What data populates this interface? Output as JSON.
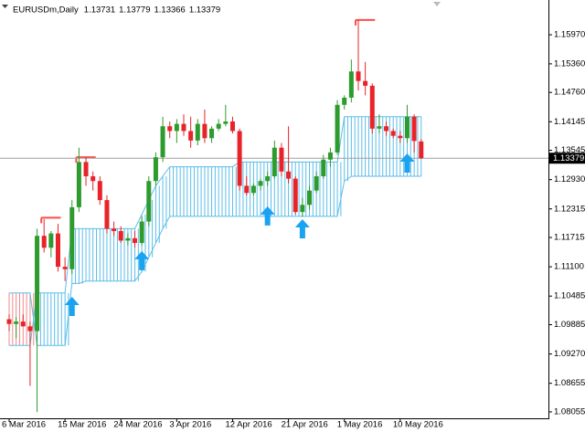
{
  "chart_data": {
    "type": "candlestick",
    "symbol": "EURUSDm,Daily",
    "categories": [
      "6 Mar 2016",
      null,
      null,
      null,
      null,
      null,
      null,
      null,
      "15 Mar 2016",
      null,
      null,
      null,
      null,
      null,
      null,
      null,
      "24 Mar 2016",
      null,
      null,
      null,
      null,
      null,
      null,
      null,
      "3 Apr 2016",
      null,
      null,
      null,
      null,
      null,
      null,
      null,
      "12 Apr 2016",
      null,
      null,
      null,
      null,
      null,
      null,
      null,
      "21 Apr 2016",
      null,
      null,
      null,
      null,
      null,
      null,
      null,
      "1 May 2016",
      null,
      null,
      null,
      null,
      null,
      null,
      null,
      "10 May 2016",
      null,
      null,
      null
    ],
    "open": [
      1.1,
      1.099,
      1.0995,
      1.0985,
      1.0975,
      1.1175,
      1.115,
      1.118,
      1.111,
      1.1105,
      1.1235,
      1.133,
      1.13,
      1.129,
      1.125,
      1.119,
      1.1185,
      1.1165,
      1.117,
      1.116,
      1.1205,
      1.129,
      1.134,
      1.1405,
      1.1395,
      1.141,
      1.1395,
      1.1375,
      1.141,
      1.138,
      1.14,
      1.141,
      1.1415,
      1.1395,
      1.128,
      1.1265,
      1.128,
      1.129,
      1.13,
      1.136,
      1.131,
      1.1295,
      1.1225,
      1.124,
      1.127,
      1.13,
      1.1335,
      1.135,
      1.145,
      1.1465,
      1.152,
      1.15,
      1.149,
      1.14,
      1.1405,
      1.1395,
      1.1385,
      1.138,
      1.1425,
      1.13731
    ],
    "high": [
      1.101,
      1.1005,
      1.101,
      1.0995,
      1.119,
      1.121,
      1.1185,
      1.12,
      1.113,
      1.125,
      1.136,
      1.134,
      1.131,
      1.13,
      1.126,
      1.1205,
      1.1195,
      1.118,
      1.1185,
      1.1215,
      1.13,
      1.135,
      1.1425,
      1.1415,
      1.142,
      1.143,
      1.1425,
      1.142,
      1.144,
      1.1405,
      1.142,
      1.145,
      1.1425,
      1.14,
      1.13,
      1.1285,
      1.1295,
      1.131,
      1.1375,
      1.137,
      1.1405,
      1.13,
      1.1255,
      1.128,
      1.131,
      1.1345,
      1.136,
      1.146,
      1.147,
      1.1545,
      1.1628,
      1.154,
      1.1495,
      1.143,
      1.1415,
      1.14,
      1.1395,
      1.145,
      1.143,
      1.13779
    ],
    "low": [
      1.0975,
      1.096,
      1.0985,
      1.086,
      1.0805,
      1.114,
      1.113,
      1.11,
      1.108,
      1.1095,
      1.1225,
      1.128,
      1.127,
      1.124,
      1.118,
      1.1175,
      1.116,
      1.1155,
      1.115,
      1.1155,
      1.1195,
      1.128,
      1.133,
      1.138,
      1.137,
      1.1385,
      1.136,
      1.1365,
      1.137,
      1.137,
      1.1395,
      1.1405,
      1.139,
      1.127,
      1.126,
      1.126,
      1.127,
      1.128,
      1.1295,
      1.13,
      1.1285,
      1.122,
      1.1215,
      1.123,
      1.1265,
      1.1295,
      1.132,
      1.1345,
      1.144,
      1.1455,
      1.148,
      1.147,
      1.139,
      1.139,
      1.1385,
      1.138,
      1.137,
      1.137,
      1.135,
      1.13366
    ],
    "close": [
      1.099,
      1.0995,
      1.0985,
      1.0975,
      1.1175,
      1.115,
      1.118,
      1.111,
      1.1105,
      1.1235,
      1.133,
      1.13,
      1.129,
      1.125,
      1.119,
      1.1185,
      1.1165,
      1.117,
      1.116,
      1.1205,
      1.129,
      1.134,
      1.1405,
      1.1395,
      1.141,
      1.1395,
      1.1375,
      1.141,
      1.138,
      1.14,
      1.141,
      1.1415,
      1.1395,
      1.128,
      1.1265,
      1.128,
      1.129,
      1.13,
      1.136,
      1.131,
      1.1295,
      1.1225,
      1.124,
      1.127,
      1.13,
      1.1335,
      1.135,
      1.145,
      1.1465,
      1.152,
      1.15,
      1.149,
      1.14,
      1.1405,
      1.1395,
      1.1385,
      1.138,
      1.1425,
      1.1374,
      1.13379
    ],
    "bull_color": "#2e9b2e",
    "bear_color": "#e8232a",
    "cloud": {
      "span_a": [
        1.0945,
        1.0945,
        1.0945,
        1.0945,
        1.1055,
        1.1055,
        1.1055,
        1.1055,
        1.1055,
        1.119,
        1.119,
        1.119,
        1.119,
        1.119,
        1.119,
        1.119,
        1.119,
        1.119,
        1.119,
        1.122,
        1.125,
        1.128,
        1.13,
        1.132,
        1.132,
        1.132,
        1.132,
        1.132,
        1.132,
        1.132,
        1.132,
        1.132,
        1.132,
        1.133,
        1.133,
        1.133,
        1.133,
        1.133,
        1.133,
        1.133,
        1.133,
        1.133,
        1.133,
        1.133,
        1.133,
        1.133,
        1.133,
        1.133,
        1.1425,
        1.1425,
        1.1425,
        1.1425,
        1.1425,
        1.1425,
        1.1425,
        1.1425,
        1.1425,
        1.1425,
        1.1425,
        1.1425
      ],
      "span_b": [
        1.1055,
        1.1055,
        1.1055,
        1.1055,
        1.0945,
        1.0945,
        1.0945,
        1.0945,
        1.0945,
        1.1075,
        1.1075,
        1.108,
        1.108,
        1.108,
        1.108,
        1.108,
        1.108,
        1.108,
        1.108,
        1.11,
        1.113,
        1.116,
        1.119,
        1.1216,
        1.1216,
        1.1216,
        1.1216,
        1.1216,
        1.1216,
        1.1216,
        1.1216,
        1.1216,
        1.1216,
        1.1216,
        1.1216,
        1.1216,
        1.1216,
        1.1216,
        1.1216,
        1.1216,
        1.1216,
        1.1216,
        1.1216,
        1.1216,
        1.1216,
        1.1216,
        1.1216,
        1.1216,
        1.129,
        1.13,
        1.13,
        1.13,
        1.13,
        1.13,
        1.13,
        1.13,
        1.13,
        1.13,
        1.13,
        1.13
      ],
      "up_color": "#5bbde8",
      "down_color": "#f08a8a"
    },
    "signals": {
      "color": "#1aa3f0",
      "index": [
        9,
        19,
        37,
        42,
        57
      ],
      "price": [
        1.1047,
        1.1143,
        1.1237,
        1.121,
        1.1348
      ]
    },
    "levels": {
      "color": "#ff4b4b",
      "from": [
        5,
        10,
        50
      ],
      "to": [
        7,
        12,
        52
      ],
      "value": [
        1.1213,
        1.134,
        1.1628
      ]
    },
    "price_line_color": "#a0a0a0",
    "ylim": [
      1.0792,
      1.167
    ],
    "yticks": [
      {
        "value": 1.1597,
        "label": "1.15970"
      },
      {
        "value": 1.1536,
        "label": "1.15360"
      },
      {
        "value": 1.1476,
        "label": "1.14760"
      },
      1.14145,
      1.13545,
      {
        "value": 1.1293,
        "label": "1.12930"
      },
      1.12315,
      1.11715,
      {
        "value": 1.111,
        "label": "1.11100"
      },
      1.10485,
      1.09885,
      {
        "value": 1.0927,
        "label": "1.09270"
      },
      1.08655,
      1.08055
    ]
  }
}
